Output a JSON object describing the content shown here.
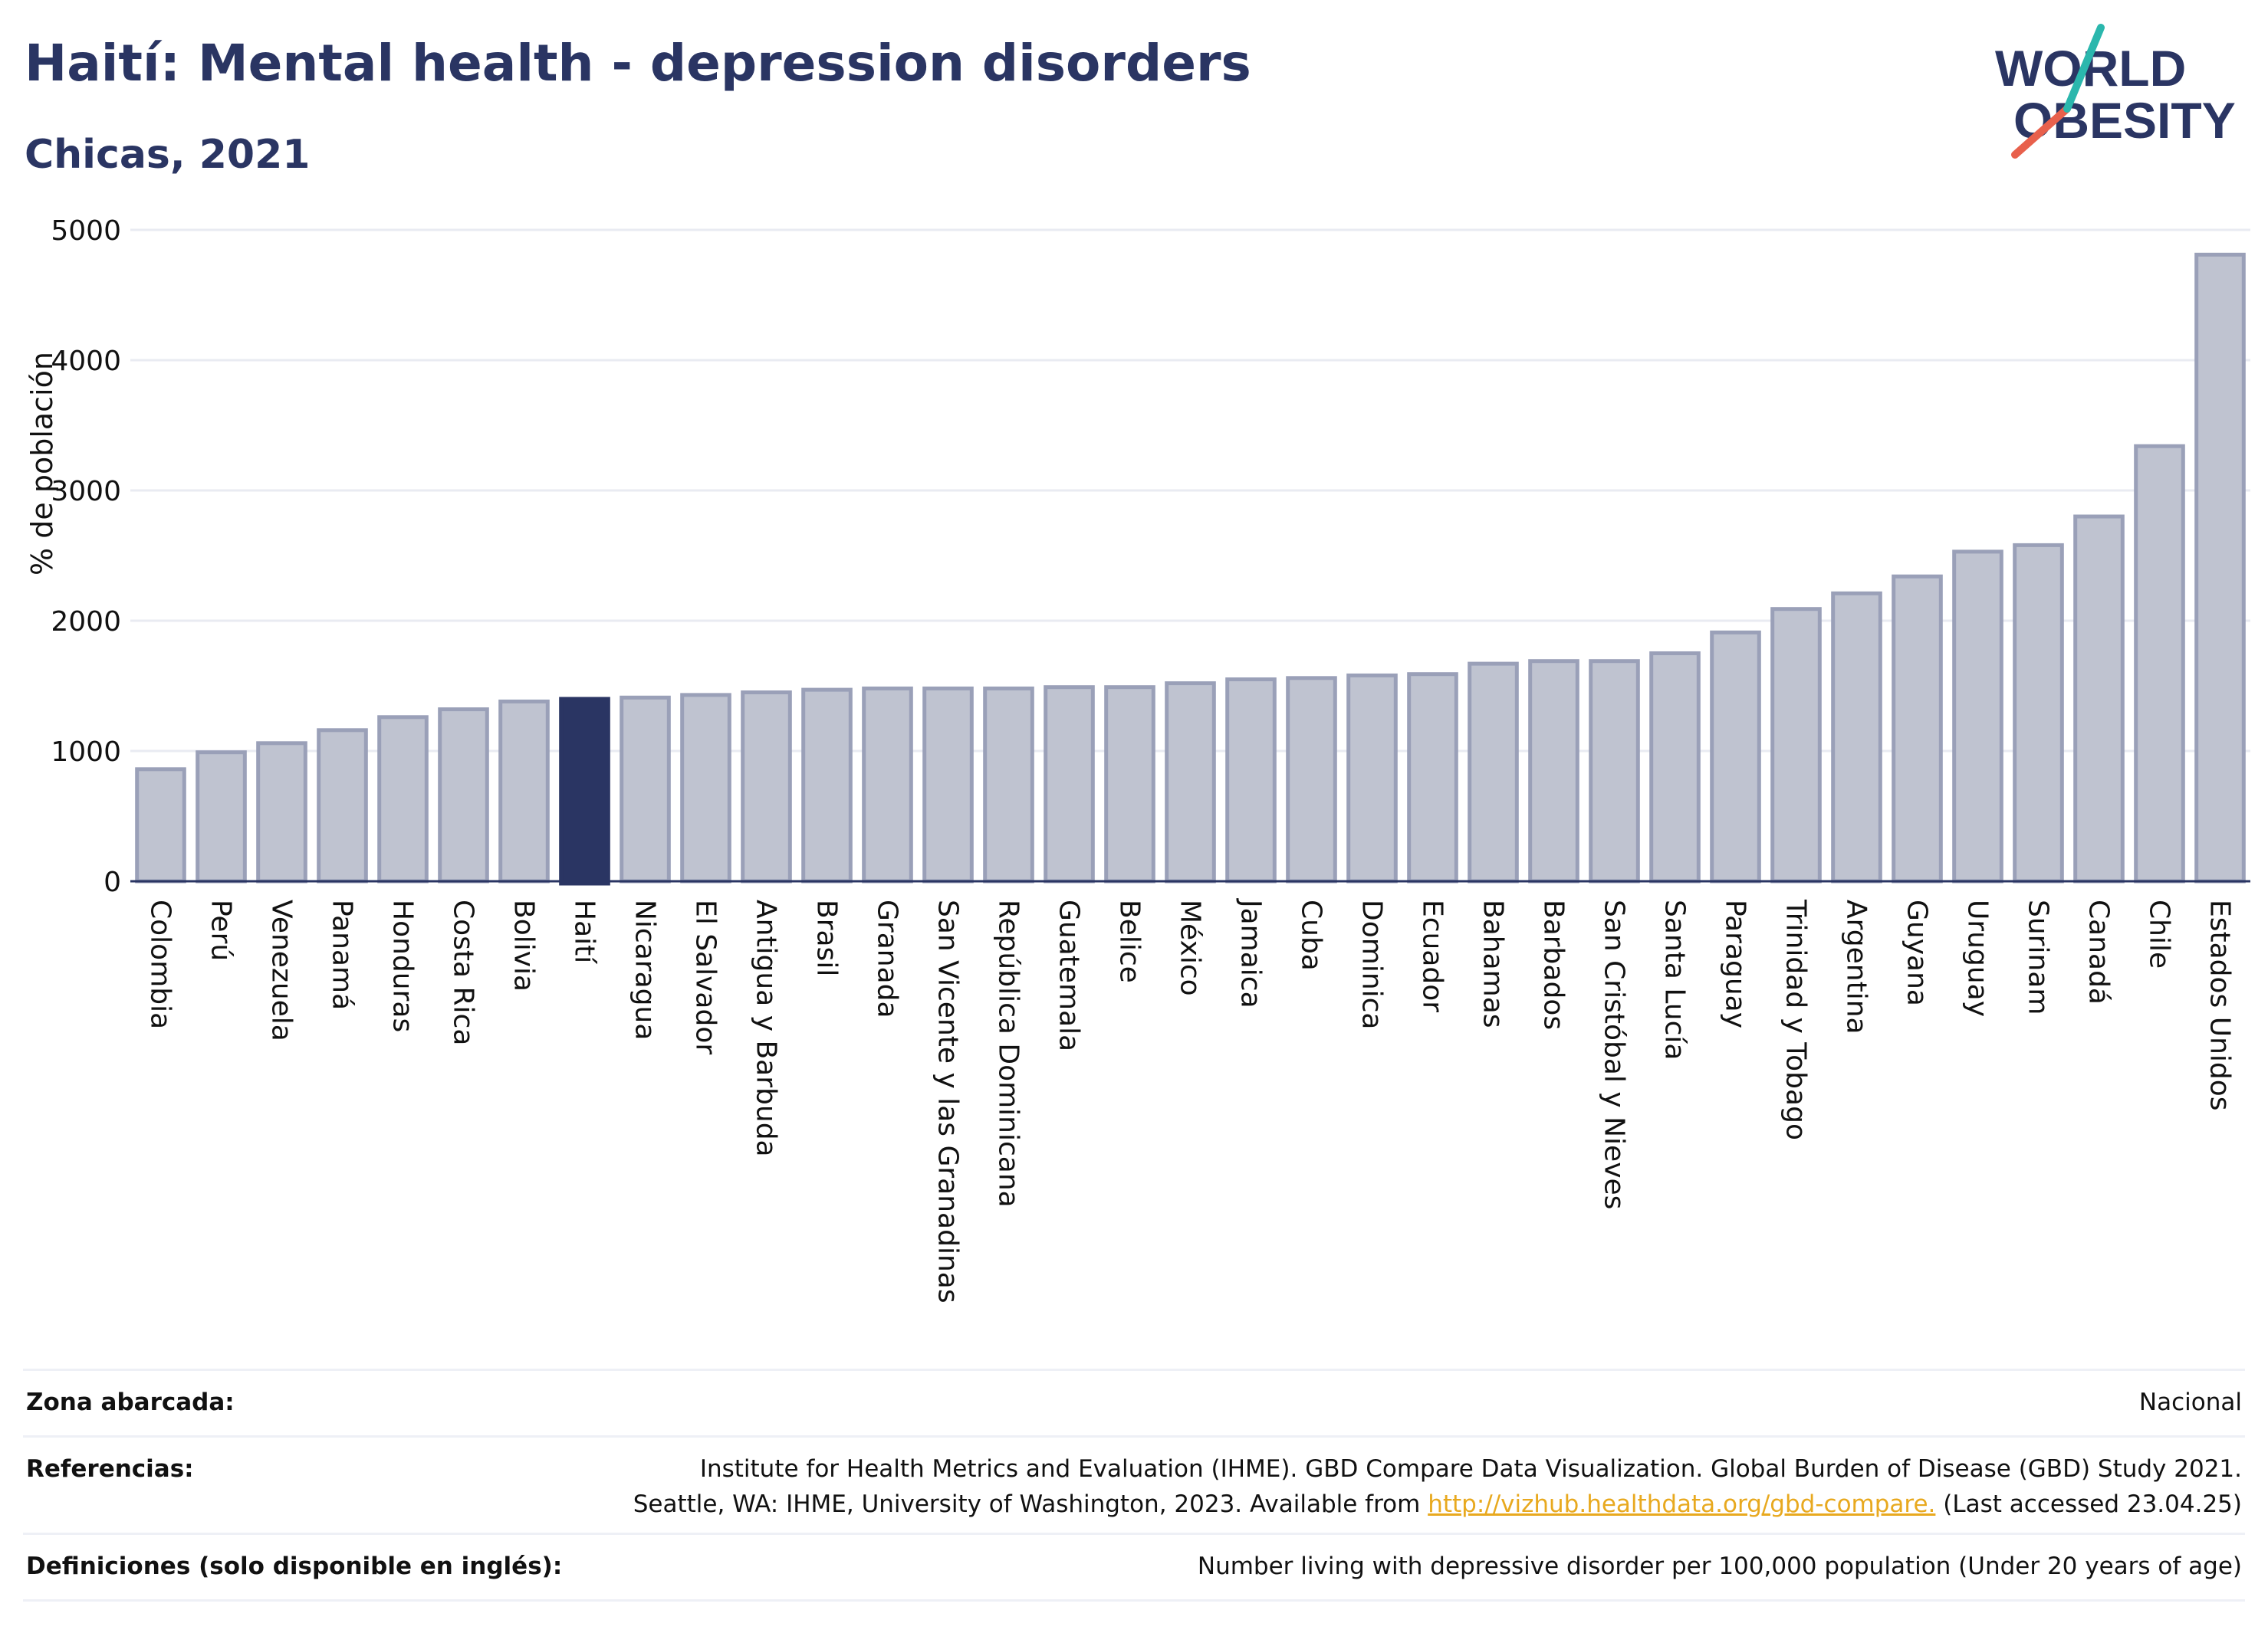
{
  "header": {
    "title": "Haití: Mental health - depression disorders",
    "subtitle": "Chicas, 2021"
  },
  "logo": {
    "line1": "WORLD",
    "line2": "OBESITY",
    "colors": {
      "text": "#2a3563",
      "slash_teal": "#2bb7ad",
      "slash_red": "#e8604c"
    }
  },
  "colors": {
    "highlight_bar": "#2a3563",
    "bar_fill": "#bfc3d0",
    "bar_outline": "#9aa0b8",
    "grid": "#e9ebf2",
    "axis": "#2a3563"
  },
  "chart_data": {
    "type": "bar",
    "ylabel": "% de población",
    "xlabel": "",
    "ylim": [
      0,
      5000
    ],
    "yticks": [
      0,
      1000,
      2000,
      3000,
      4000,
      5000
    ],
    "grid": true,
    "highlight": "Haití",
    "categories": [
      "Colombia",
      "Perú",
      "Venezuela",
      "Panamá",
      "Honduras",
      "Costa Rica",
      "Bolivia",
      "Haití",
      "Nicaragua",
      "El Salvador",
      "Antigua y Barbuda",
      "Brasil",
      "Granada",
      "San Vicente y las Granadinas",
      "República Dominicana",
      "Guatemala",
      "Belice",
      "México",
      "Jamaica",
      "Cuba",
      "Dominica",
      "Ecuador",
      "Bahamas",
      "Barbados",
      "San Cristóbal y Nieves",
      "Santa Lucía",
      "Paraguay",
      "Trinidad y Tobago",
      "Argentina",
      "Guyana",
      "Uruguay",
      "Surinam",
      "Canadá",
      "Chile",
      "Estados Unidos"
    ],
    "values": [
      860,
      990,
      1060,
      1160,
      1260,
      1320,
      1380,
      1400,
      1410,
      1430,
      1450,
      1470,
      1480,
      1480,
      1480,
      1490,
      1490,
      1520,
      1550,
      1560,
      1580,
      1590,
      1670,
      1690,
      1690,
      1750,
      1910,
      2090,
      2210,
      2340,
      2530,
      2580,
      2800,
      3340,
      4810
    ]
  },
  "footer": {
    "rows": [
      {
        "label": "Zona abarcada:",
        "lines": [
          "Nacional"
        ]
      },
      {
        "label": "Referencias:",
        "lines": [
          "Institute for Health Metrics and Evaluation (IHME). GBD Compare Data Visualization. Global Burden of Disease (GBD) Study 2021.",
          "Seattle, WA: IHME, University of Washington, 2023. Available from"
        ],
        "link": "http://vizhub.healthdata.org/gbd-compare.",
        "after_link": " (Last accessed 23.04.25)"
      },
      {
        "label": "Definiciones (solo disponible en inglés):",
        "lines": [
          "Number living with depressive disorder per 100,000 population (Under 20 years of age)"
        ]
      }
    ]
  }
}
